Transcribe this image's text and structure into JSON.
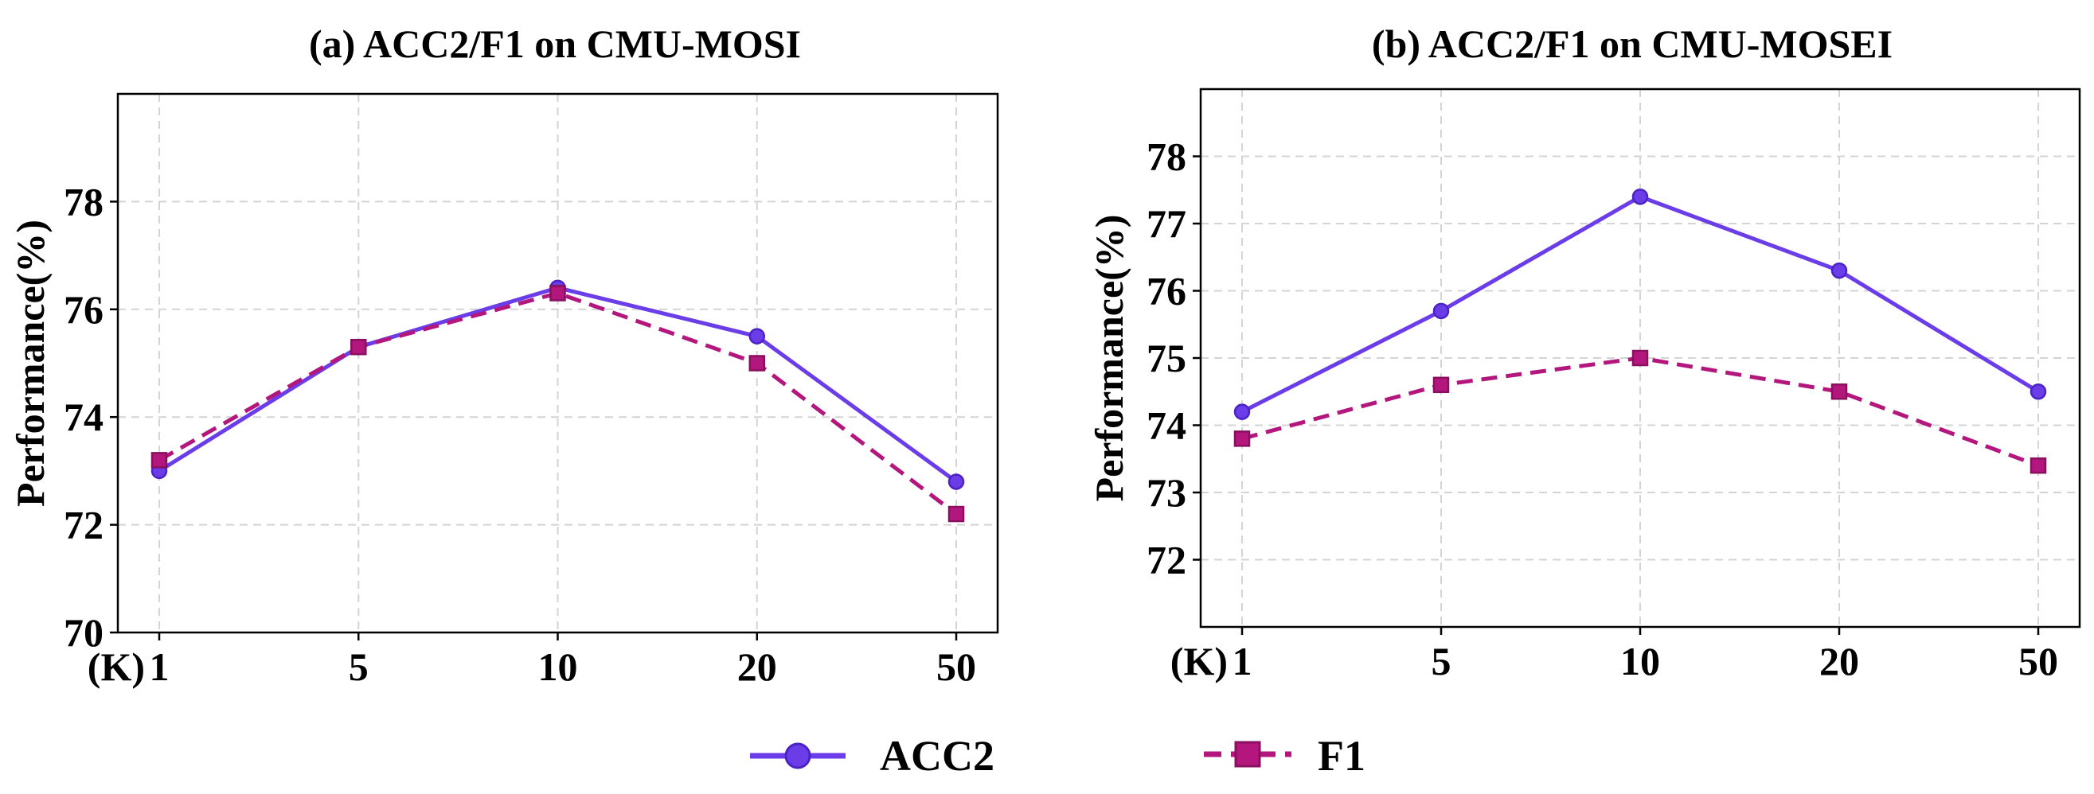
{
  "chart_data": [
    {
      "type": "line",
      "title": "(a) ACC2/F1 on CMU-MOSI",
      "xlabel": "(K)",
      "ylabel": "Performance(%)",
      "categories": [
        "1",
        "5",
        "10",
        "20",
        "50"
      ],
      "ylim": [
        70,
        80
      ],
      "yticks": [
        70,
        72,
        74,
        76,
        78
      ],
      "grid": true,
      "series": [
        {
          "name": "ACC2",
          "values": [
            73.0,
            75.3,
            76.4,
            75.5,
            72.8
          ],
          "color": "#6a3de8",
          "marker": "circle",
          "linestyle": "solid"
        },
        {
          "name": "F1",
          "values": [
            73.2,
            75.3,
            76.3,
            75.0,
            72.2
          ],
          "color": "#b3177d",
          "marker": "square",
          "linestyle": "dashed"
        }
      ]
    },
    {
      "type": "line",
      "title": "(b) ACC2/F1 on CMU-MOSEI",
      "xlabel": "(K)",
      "ylabel": "Performance(%)",
      "categories": [
        "1",
        "5",
        "10",
        "20",
        "50"
      ],
      "ylim": [
        71,
        79
      ],
      "yticks": [
        72,
        73,
        74,
        75,
        76,
        77,
        78
      ],
      "grid": true,
      "series": [
        {
          "name": "ACC2",
          "values": [
            74.2,
            75.7,
            77.4,
            76.3,
            74.5
          ],
          "color": "#6a3de8",
          "marker": "circle",
          "linestyle": "solid"
        },
        {
          "name": "F1",
          "values": [
            73.8,
            74.6,
            75.0,
            74.5,
            73.4
          ],
          "color": "#b3177d",
          "marker": "square",
          "linestyle": "dashed"
        }
      ]
    }
  ],
  "legend": {
    "position": "bottom-center",
    "items": [
      {
        "label": "ACC2",
        "color": "#6a3de8",
        "marker": "circle",
        "linestyle": "solid"
      },
      {
        "label": "F1",
        "color": "#b3177d",
        "marker": "square",
        "linestyle": "dashed"
      }
    ]
  }
}
